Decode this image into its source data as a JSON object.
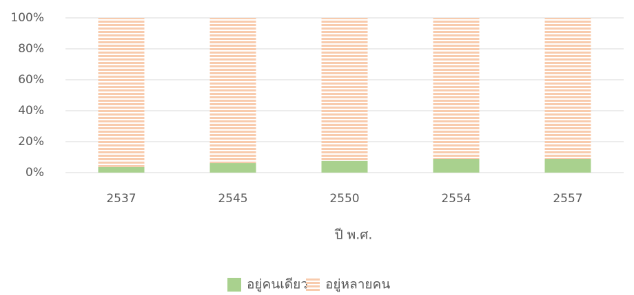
{
  "chart_data": {
    "type": "stacked_bar",
    "x_label": "ปี พ.ศ.",
    "categories": [
      "2537",
      "2545",
      "2550",
      "2554",
      "2557"
    ],
    "series": [
      {
        "name": "อยู่คนเดียว",
        "color": "#a9d18e",
        "values": [
          3.6,
          6.2,
          7.6,
          8.9,
          8.9
        ]
      },
      {
        "name": "อยู่หลายคน",
        "color": "#f8cbad",
        "pattern": "horizontal-stripes",
        "values": [
          96.4,
          93.8,
          92.4,
          91.1,
          91.1
        ]
      }
    ],
    "ylim": [
      0,
      100
    ],
    "yticks": [
      {
        "value": 0,
        "label": "0%"
      },
      {
        "value": 20,
        "label": "20%"
      },
      {
        "value": 40,
        "label": "40%"
      },
      {
        "value": 60,
        "label": "60%"
      },
      {
        "value": 80,
        "label": "80%"
      },
      {
        "value": 100,
        "label": "100%"
      }
    ],
    "grid": true,
    "legend": "bottom"
  }
}
